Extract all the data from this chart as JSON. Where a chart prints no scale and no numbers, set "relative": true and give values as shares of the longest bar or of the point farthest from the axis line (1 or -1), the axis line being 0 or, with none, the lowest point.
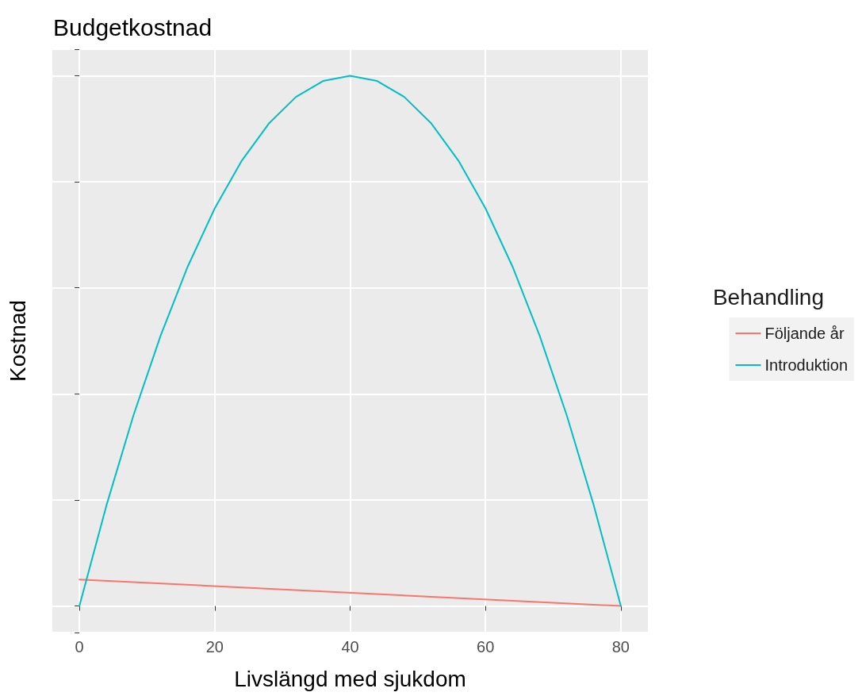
{
  "chart_data": {
    "type": "line",
    "title": "Budgetkostnad",
    "xlabel": "Livslängd med sjukdom",
    "ylabel": "Kostnad",
    "legend_title": "Behandling",
    "relative": true,
    "tick_labels": "x",
    "grid": true,
    "legend": "right",
    "marker": "none",
    "line_style": "solid",
    "xlim": [
      -4,
      84
    ],
    "xticks": [
      0,
      20,
      40,
      60,
      80
    ],
    "series": [
      {
        "name": "Följande år",
        "color": "#f8766d",
        "x": [
          0,
          80
        ],
        "values": [
          0.05,
          0
        ]
      },
      {
        "name": "Introduktion",
        "color": "#00bfc4",
        "x": [
          0,
          4,
          8,
          12,
          16,
          20,
          24,
          28,
          32,
          36,
          40,
          44,
          48,
          52,
          56,
          60,
          64,
          68,
          72,
          76,
          80
        ],
        "values": [
          0,
          0.19,
          0.36,
          0.51,
          0.64,
          0.75,
          0.84,
          0.91,
          0.96,
          0.99,
          1,
          0.99,
          0.96,
          0.91,
          0.84,
          0.75,
          0.64,
          0.51,
          0.36,
          0.19,
          0
        ]
      }
    ]
  }
}
